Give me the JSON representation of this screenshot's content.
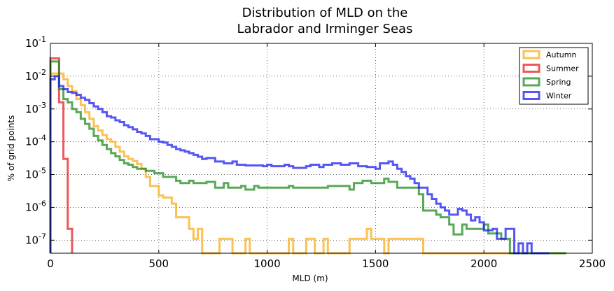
{
  "chart_data": {
    "type": "histogram",
    "title": [
      "Distribution of MLD on the",
      "Labrador and Irminger Seas"
    ],
    "xlabel": "MLD (m)",
    "ylabel": "% of grid points",
    "xlim": [
      0,
      2500
    ],
    "ylim": [
      4e-08,
      0.1
    ],
    "yscale": "log",
    "grid": true,
    "legend_position": "top-right",
    "x_ticks": [
      "0",
      "500",
      "1000",
      "1500",
      "2000",
      "2500"
    ],
    "x_tick_values": [
      0,
      500,
      1000,
      1500,
      2000,
      2500
    ],
    "y_ticks": [
      {
        "value": 1e-07,
        "base": "10",
        "exp": "-7"
      },
      {
        "value": 1e-06,
        "base": "10",
        "exp": "-6"
      },
      {
        "value": 1e-05,
        "base": "10",
        "exp": "-5"
      },
      {
        "value": 0.0001,
        "base": "10",
        "exp": "-4"
      },
      {
        "value": 0.001,
        "base": "10",
        "exp": "-3"
      },
      {
        "value": 0.01,
        "base": "10",
        "exp": "-2"
      },
      {
        "value": 0.1,
        "base": "10",
        "exp": "-1"
      }
    ],
    "series": [
      {
        "name": "Autumn",
        "color": "#f9ae1a",
        "steps": [
          [
            0,
            0.012
          ],
          [
            20,
            0.012
          ],
          [
            40,
            0.012
          ],
          [
            60,
            0.008
          ],
          [
            80,
            0.005
          ],
          [
            100,
            0.0035
          ],
          [
            120,
            0.002
          ],
          [
            140,
            0.0013
          ],
          [
            160,
            0.0008
          ],
          [
            180,
            0.0005
          ],
          [
            200,
            0.0003
          ],
          [
            220,
            0.00022
          ],
          [
            240,
            0.00016
          ],
          [
            260,
            0.00012
          ],
          [
            280,
            0.0001
          ],
          [
            300,
            7e-05
          ],
          [
            320,
            5e-05
          ],
          [
            340,
            3.6e-05
          ],
          [
            360,
            3e-05
          ],
          [
            380,
            2.6e-05
          ],
          [
            400,
            2.1e-05
          ],
          [
            420,
            1.5e-05
          ],
          [
            440,
            8.5e-06
          ],
          [
            460,
            4.5e-06
          ],
          [
            500,
            2.3e-06
          ],
          [
            520,
            2e-06
          ],
          [
            560,
            1.3e-06
          ],
          [
            580,
            5e-07
          ],
          [
            640,
            2.2e-07
          ],
          [
            660,
            1.1e-07
          ],
          [
            680,
            2.2e-07
          ],
          [
            700,
            4e-08
          ],
          [
            780,
            1.1e-07
          ],
          [
            840,
            4e-08
          ],
          [
            900,
            1.1e-07
          ],
          [
            920,
            4e-08
          ],
          [
            1100,
            1.1e-07
          ],
          [
            1120,
            4e-08
          ],
          [
            1180,
            1.1e-07
          ],
          [
            1220,
            4e-08
          ],
          [
            1260,
            1.1e-07
          ],
          [
            1280,
            4e-08
          ],
          [
            1380,
            1.1e-07
          ],
          [
            1420,
            1.1e-07
          ],
          [
            1460,
            2.2e-07
          ],
          [
            1480,
            1.1e-07
          ],
          [
            1540,
            4e-08
          ],
          [
            1560,
            1.1e-07
          ],
          [
            1580,
            1.1e-07
          ],
          [
            1700,
            1.1e-07
          ],
          [
            1720,
            4e-08
          ],
          [
            1740,
            4e-08
          ],
          [
            2380,
            4e-08
          ]
        ],
        "end_x": 2380
      },
      {
        "name": "Summer",
        "color": "#e82020",
        "steps": [
          [
            0,
            0.035
          ],
          [
            20,
            0.035
          ],
          [
            40,
            0.0016
          ],
          [
            60,
            3e-05
          ],
          [
            80,
            2.2e-07
          ],
          [
            100,
            4e-08
          ]
        ],
        "end_x": 100
      },
      {
        "name": "Spring",
        "color": "#228b22",
        "steps": [
          [
            0,
            0.028
          ],
          [
            20,
            0.028
          ],
          [
            40,
            0.004
          ],
          [
            60,
            0.002
          ],
          [
            80,
            0.0016
          ],
          [
            100,
            0.001
          ],
          [
            120,
            0.0008
          ],
          [
            140,
            0.0005
          ],
          [
            160,
            0.00035
          ],
          [
            180,
            0.00025
          ],
          [
            200,
            0.00015
          ],
          [
            220,
            0.00011
          ],
          [
            240,
            8e-05
          ],
          [
            260,
            6e-05
          ],
          [
            280,
            4.5e-05
          ],
          [
            300,
            3.6e-05
          ],
          [
            320,
            2.8e-05
          ],
          [
            340,
            2.2e-05
          ],
          [
            360,
            2e-05
          ],
          [
            380,
            1.7e-05
          ],
          [
            400,
            1.5e-05
          ],
          [
            440,
            1.3e-05
          ],
          [
            480,
            1.1e-05
          ],
          [
            520,
            8.5e-06
          ],
          [
            580,
            6.5e-06
          ],
          [
            600,
            5.5e-06
          ],
          [
            640,
            6.5e-06
          ],
          [
            660,
            5.5e-06
          ],
          [
            720,
            6e-06
          ],
          [
            760,
            4e-06
          ],
          [
            800,
            5.5e-06
          ],
          [
            820,
            4e-06
          ],
          [
            880,
            4.5e-06
          ],
          [
            900,
            3.5e-06
          ],
          [
            940,
            4.5e-06
          ],
          [
            960,
            4e-06
          ],
          [
            1100,
            4.5e-06
          ],
          [
            1120,
            4e-06
          ],
          [
            1280,
            4.5e-06
          ],
          [
            1300,
            4.5e-06
          ],
          [
            1380,
            3.5e-06
          ],
          [
            1400,
            5.5e-06
          ],
          [
            1440,
            6.5e-06
          ],
          [
            1480,
            5.5e-06
          ],
          [
            1540,
            7.5e-06
          ],
          [
            1560,
            6e-06
          ],
          [
            1600,
            4e-06
          ],
          [
            1700,
            2.5e-06
          ],
          [
            1720,
            8e-07
          ],
          [
            1780,
            6e-07
          ],
          [
            1800,
            5e-07
          ],
          [
            1840,
            3e-07
          ],
          [
            1860,
            1.5e-07
          ],
          [
            1900,
            3e-07
          ],
          [
            1920,
            2.2e-07
          ],
          [
            2000,
            3e-07
          ],
          [
            2020,
            1.6e-07
          ],
          [
            2080,
            1.1e-07
          ],
          [
            2100,
            1.1e-07
          ],
          [
            2120,
            4e-08
          ],
          [
            2140,
            4e-08
          ],
          [
            2380,
            4e-08
          ]
        ],
        "end_x": 2380
      },
      {
        "name": "Winter",
        "color": "#1e1ef0",
        "steps": [
          [
            0,
            0.008
          ],
          [
            20,
            0.01
          ],
          [
            40,
            0.005
          ],
          [
            60,
            0.004
          ],
          [
            80,
            0.0033
          ],
          [
            100,
            0.0031
          ],
          [
            120,
            0.0027
          ],
          [
            140,
            0.0022
          ],
          [
            160,
            0.0019
          ],
          [
            180,
            0.0015
          ],
          [
            200,
            0.0012
          ],
          [
            220,
            0.001
          ],
          [
            240,
            0.0008
          ],
          [
            260,
            0.0006
          ],
          [
            280,
            0.00055
          ],
          [
            300,
            0.00045
          ],
          [
            320,
            0.0004
          ],
          [
            340,
            0.00032
          ],
          [
            360,
            0.00028
          ],
          [
            380,
            0.00024
          ],
          [
            400,
            0.0002
          ],
          [
            420,
            0.00018
          ],
          [
            440,
            0.00015
          ],
          [
            460,
            0.00012
          ],
          [
            500,
            0.0001
          ],
          [
            520,
            9.5e-05
          ],
          [
            540,
            8e-05
          ],
          [
            560,
            7e-05
          ],
          [
            580,
            6e-05
          ],
          [
            600,
            5.5e-05
          ],
          [
            620,
            5e-05
          ],
          [
            640,
            4.5e-05
          ],
          [
            660,
            4e-05
          ],
          [
            680,
            3.5e-05
          ],
          [
            700,
            3e-05
          ],
          [
            720,
            3.2e-05
          ],
          [
            760,
            2.5e-05
          ],
          [
            800,
            2.2e-05
          ],
          [
            840,
            2.5e-05
          ],
          [
            860,
            2e-05
          ],
          [
            900,
            1.9e-05
          ],
          [
            980,
            1.8e-05
          ],
          [
            1000,
            2e-05
          ],
          [
            1020,
            1.8e-05
          ],
          [
            1080,
            2e-05
          ],
          [
            1100,
            1.8e-05
          ],
          [
            1120,
            1.6e-05
          ],
          [
            1180,
            1.8e-05
          ],
          [
            1200,
            2e-05
          ],
          [
            1240,
            1.7e-05
          ],
          [
            1260,
            2e-05
          ],
          [
            1300,
            2.2e-05
          ],
          [
            1340,
            2e-05
          ],
          [
            1380,
            2.2e-05
          ],
          [
            1420,
            1.8e-05
          ],
          [
            1460,
            1.7e-05
          ],
          [
            1500,
            1.5e-05
          ],
          [
            1520,
            2.2e-05
          ],
          [
            1560,
            2.5e-05
          ],
          [
            1580,
            2e-05
          ],
          [
            1600,
            1.5e-05
          ],
          [
            1620,
            1.2e-05
          ],
          [
            1640,
            9e-06
          ],
          [
            1660,
            7.5e-06
          ],
          [
            1680,
            5.5e-06
          ],
          [
            1700,
            4e-06
          ],
          [
            1740,
            2.5e-06
          ],
          [
            1760,
            1.8e-06
          ],
          [
            1780,
            1.3e-06
          ],
          [
            1800,
            1e-06
          ],
          [
            1820,
            8e-07
          ],
          [
            1840,
            6e-07
          ],
          [
            1880,
            9e-07
          ],
          [
            1900,
            8e-07
          ],
          [
            1920,
            6e-07
          ],
          [
            1940,
            4e-07
          ],
          [
            1960,
            5e-07
          ],
          [
            1980,
            3.5e-07
          ],
          [
            2000,
            2e-07
          ],
          [
            2020,
            2e-07
          ],
          [
            2040,
            2.2e-07
          ],
          [
            2060,
            1.1e-07
          ],
          [
            2100,
            2.2e-07
          ],
          [
            2120,
            2.2e-07
          ],
          [
            2140,
            4e-08
          ],
          [
            2160,
            8e-08
          ],
          [
            2180,
            4e-08
          ],
          [
            2200,
            8e-08
          ],
          [
            2220,
            4e-08
          ],
          [
            2300,
            4e-08
          ]
        ],
        "end_x": 2300
      }
    ]
  }
}
